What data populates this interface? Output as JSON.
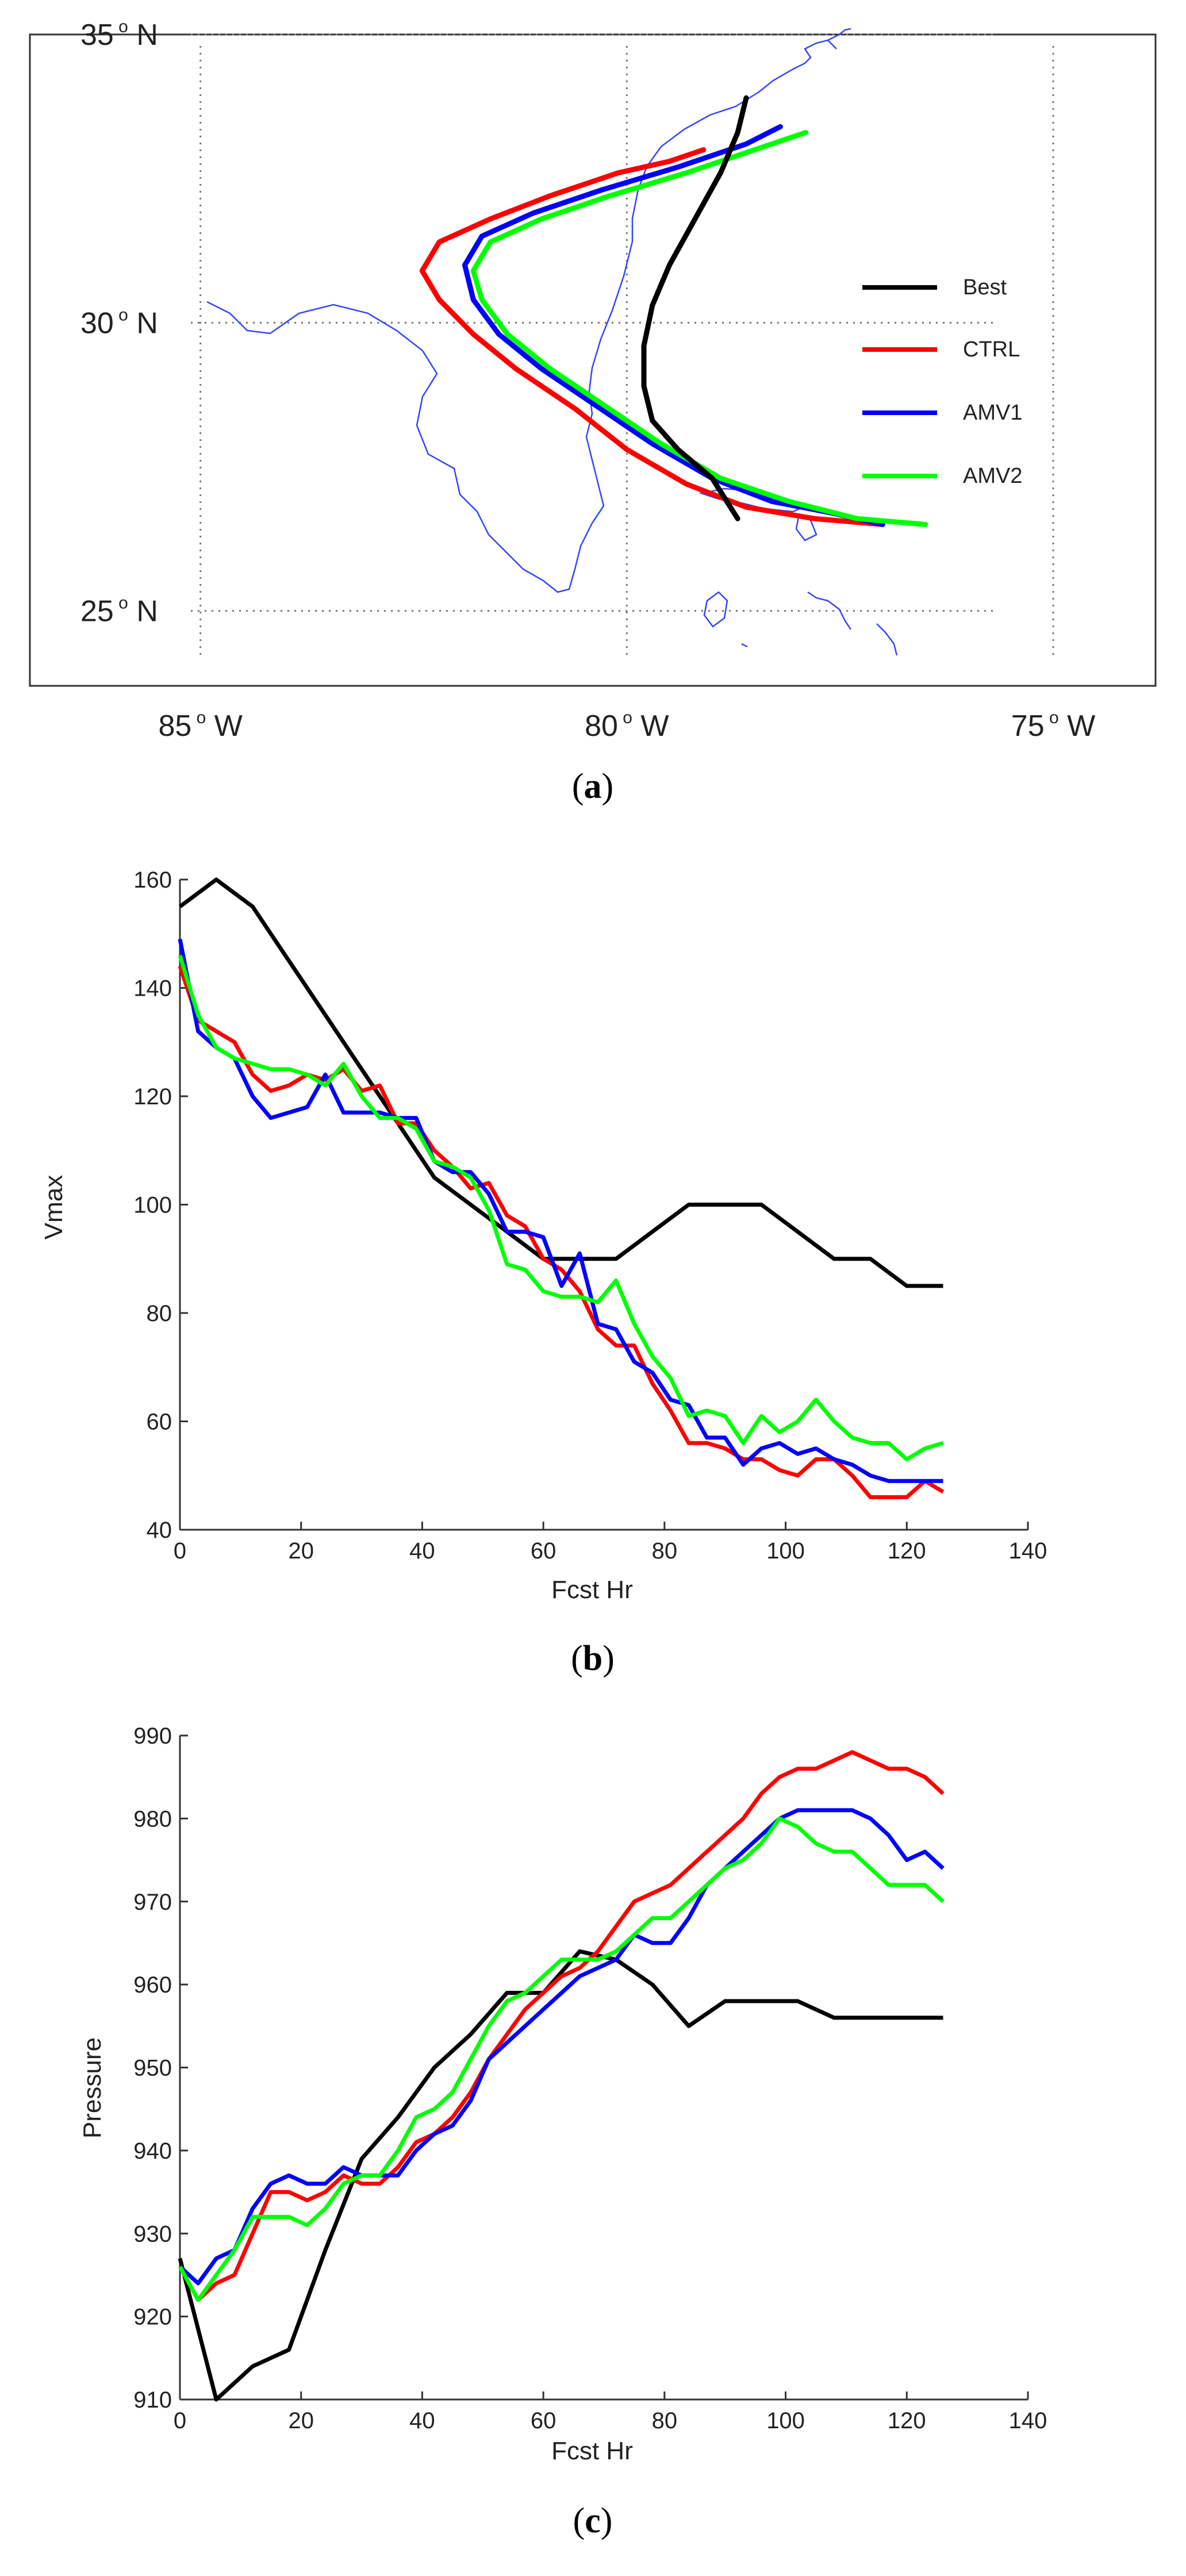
{
  "colors": {
    "best": "#000000",
    "ctrl": "#ff0000",
    "amv1": "#0000ff",
    "amv2": "#00ff00",
    "coast": "#3344ff"
  },
  "chart_data": [
    {
      "type": "line",
      "panel": "a",
      "caption": {
        "open": "(",
        "letter": "a",
        "close": ")"
      },
      "title": "",
      "xlabel": "",
      "ylabel": "",
      "xlim": [
        -87,
        -73.8
      ],
      "ylim": [
        23.7,
        35
      ],
      "x_ticks": [
        -85,
        -80,
        -75
      ],
      "y_ticks": [
        35,
        30,
        25
      ],
      "x_tick_labels": [
        {
          "num": "85",
          "deg": "o",
          "dir": "W"
        },
        {
          "num": "80",
          "deg": "o",
          "dir": "W"
        },
        {
          "num": "75",
          "deg": "o",
          "dir": "W"
        }
      ],
      "y_tick_labels": [
        {
          "num": "35",
          "deg": "o",
          "dir": "N"
        },
        {
          "num": "30",
          "deg": "o",
          "dir": "N"
        },
        {
          "num": "25",
          "deg": "o",
          "dir": "N"
        }
      ],
      "grid": true,
      "legend": "right",
      "series": [
        {
          "name": "Best",
          "key": "best",
          "lon": [
            -78.7,
            -79.0,
            -79.4,
            -79.7,
            -79.8,
            -79.8,
            -79.7,
            -79.5,
            -79.2,
            -78.9,
            -78.7,
            -78.6
          ],
          "lat": [
            26.6,
            27.3,
            27.8,
            28.3,
            28.9,
            29.6,
            30.3,
            31.0,
            31.8,
            32.6,
            33.3,
            33.9
          ]
        },
        {
          "name": "CTRL",
          "key": "ctrl",
          "lon": [
            -77.0,
            -77.8,
            -78.6,
            -79.3,
            -80.0,
            -80.6,
            -81.3,
            -81.8,
            -82.2,
            -82.4,
            -82.2,
            -81.6,
            -80.9,
            -80.1,
            -79.5,
            -79.1
          ],
          "lat": [
            26.5,
            26.6,
            26.8,
            27.2,
            27.8,
            28.5,
            29.2,
            29.8,
            30.4,
            30.9,
            31.4,
            31.8,
            32.2,
            32.6,
            32.8,
            33.0
          ]
        },
        {
          "name": "AMV1",
          "key": "amv1",
          "lon": [
            -77.0,
            -77.6,
            -78.3,
            -79.0,
            -79.7,
            -80.4,
            -81.0,
            -81.5,
            -81.8,
            -81.9,
            -81.7,
            -81.1,
            -80.3,
            -79.4,
            -78.6,
            -78.2
          ],
          "lat": [
            26.5,
            26.7,
            26.9,
            27.3,
            27.9,
            28.6,
            29.2,
            29.8,
            30.4,
            31.0,
            31.5,
            31.9,
            32.3,
            32.7,
            33.1,
            33.4
          ]
        },
        {
          "name": "AMV2",
          "key": "amv2",
          "lon": [
            -76.5,
            -77.3,
            -78.1,
            -78.9,
            -79.6,
            -80.3,
            -80.9,
            -81.4,
            -81.7,
            -81.8,
            -81.6,
            -81.0,
            -80.2,
            -79.3,
            -78.5,
            -77.9
          ],
          "lat": [
            26.5,
            26.6,
            26.9,
            27.3,
            27.9,
            28.6,
            29.2,
            29.8,
            30.4,
            30.9,
            31.4,
            31.8,
            32.2,
            32.6,
            33.0,
            33.3
          ]
        }
      ]
    },
    {
      "type": "line",
      "panel": "b",
      "caption": {
        "open": "(",
        "letter": "b",
        "close": ")"
      },
      "title": "",
      "xlabel": "Fcst Hr",
      "ylabel": "Vmax",
      "xlim": [
        0,
        140
      ],
      "ylim": [
        40,
        160
      ],
      "x_ticks": [
        0,
        20,
        40,
        60,
        80,
        100,
        120,
        140
      ],
      "y_ticks": [
        40,
        60,
        80,
        100,
        120,
        140,
        160
      ],
      "grid": false,
      "legend": "none",
      "series": [
        {
          "name": "Best",
          "key": "best",
          "x": [
            0,
            6,
            12,
            18,
            24,
            30,
            36,
            42,
            48,
            54,
            60,
            66,
            72,
            78,
            84,
            90,
            96,
            102,
            108,
            114,
            120,
            126
          ],
          "y": [
            155,
            160,
            155,
            145,
            135,
            125,
            115,
            105,
            100,
            95,
            90,
            90,
            90,
            95,
            100,
            100,
            100,
            95,
            90,
            90,
            85,
            85
          ]
        },
        {
          "name": "CTRL",
          "key": "ctrl",
          "x": [
            0,
            3,
            6,
            9,
            12,
            15,
            18,
            21,
            24,
            27,
            30,
            33,
            36,
            39,
            42,
            45,
            48,
            51,
            54,
            57,
            60,
            63,
            66,
            69,
            72,
            75,
            78,
            81,
            84,
            87,
            90,
            93,
            96,
            99,
            102,
            105,
            108,
            111,
            114,
            117,
            120,
            123,
            126
          ],
          "y": [
            144,
            134,
            132,
            130,
            124,
            121,
            122,
            124,
            123,
            125,
            121,
            122,
            115,
            115,
            110,
            107,
            103,
            104,
            98,
            96,
            90,
            88,
            84,
            77,
            74,
            74,
            67,
            62,
            56,
            56,
            55,
            53,
            53,
            51,
            50,
            53,
            53,
            50,
            46,
            46,
            46,
            49,
            47
          ]
        },
        {
          "name": "AMV1",
          "key": "amv1",
          "x": [
            0,
            3,
            6,
            9,
            12,
            15,
            18,
            21,
            24,
            27,
            30,
            33,
            36,
            39,
            42,
            45,
            48,
            51,
            54,
            57,
            60,
            63,
            66,
            69,
            72,
            75,
            78,
            81,
            84,
            87,
            90,
            93,
            96,
            99,
            102,
            105,
            108,
            111,
            114,
            117,
            120,
            123,
            126
          ],
          "y": [
            149,
            132,
            129,
            127,
            120,
            116,
            117,
            118,
            124,
            117,
            117,
            117,
            116,
            116,
            108,
            106,
            106,
            102,
            95,
            95,
            94,
            85,
            91,
            78,
            77,
            71,
            69,
            64,
            63,
            57,
            57,
            52,
            55,
            56,
            54,
            55,
            53,
            52,
            50,
            49,
            49,
            49,
            49
          ]
        },
        {
          "name": "AMV2",
          "key": "amv2",
          "x": [
            0,
            3,
            6,
            9,
            12,
            15,
            18,
            21,
            24,
            27,
            30,
            33,
            36,
            39,
            42,
            45,
            48,
            51,
            54,
            57,
            60,
            63,
            66,
            69,
            72,
            75,
            78,
            81,
            84,
            87,
            90,
            93,
            96,
            99,
            102,
            105,
            108,
            111,
            114,
            117,
            120,
            123,
            126
          ],
          "y": [
            146,
            135,
            129,
            127,
            126,
            125,
            125,
            124,
            122,
            126,
            120,
            116,
            116,
            114,
            108,
            107,
            105,
            99,
            89,
            88,
            84,
            83,
            83,
            82,
            86,
            78,
            72,
            68,
            61,
            62,
            61,
            56,
            61,
            58,
            60,
            64,
            60,
            57,
            56,
            56,
            53,
            55,
            56
          ]
        }
      ]
    },
    {
      "type": "line",
      "panel": "c",
      "caption": {
        "open": "(",
        "letter": "c",
        "close": ")"
      },
      "title": "",
      "xlabel": "Fcst Hr",
      "ylabel": "Pressure",
      "xlim": [
        0,
        140
      ],
      "ylim": [
        910,
        990
      ],
      "x_ticks": [
        0,
        20,
        40,
        60,
        80,
        100,
        120,
        140
      ],
      "y_ticks": [
        910,
        920,
        930,
        940,
        950,
        960,
        970,
        980,
        990
      ],
      "grid": false,
      "legend": "none",
      "series": [
        {
          "name": "Best",
          "key": "best",
          "x": [
            0,
            6,
            12,
            18,
            24,
            30,
            36,
            42,
            48,
            54,
            60,
            66,
            72,
            78,
            84,
            90,
            96,
            102,
            108,
            114,
            120,
            126
          ],
          "y": [
            927,
            910,
            914,
            916,
            928,
            939,
            944,
            950,
            954,
            959,
            959,
            964,
            963,
            960,
            955,
            958,
            958,
            958,
            956,
            956,
            956,
            956
          ]
        },
        {
          "name": "CTRL",
          "key": "ctrl",
          "x": [
            0,
            3,
            6,
            9,
            12,
            15,
            18,
            21,
            24,
            27,
            30,
            33,
            36,
            39,
            42,
            45,
            48,
            51,
            54,
            57,
            60,
            63,
            66,
            69,
            72,
            75,
            78,
            81,
            84,
            87,
            90,
            93,
            96,
            99,
            102,
            105,
            108,
            111,
            114,
            117,
            120,
            123,
            126
          ],
          "y": [
            926,
            922,
            924,
            925,
            930,
            935,
            935,
            934,
            935,
            937,
            936,
            936,
            938,
            941,
            942,
            944,
            947,
            951,
            954,
            957,
            959,
            961,
            962,
            964,
            967,
            970,
            971,
            972,
            974,
            976,
            978,
            980,
            983,
            985,
            986,
            986,
            987,
            988,
            987,
            986,
            986,
            985,
            983
          ]
        },
        {
          "name": "AMV1",
          "key": "amv1",
          "x": [
            0,
            3,
            6,
            9,
            12,
            15,
            18,
            21,
            24,
            27,
            30,
            33,
            36,
            39,
            42,
            45,
            48,
            51,
            54,
            57,
            60,
            63,
            66,
            69,
            72,
            75,
            78,
            81,
            84,
            87,
            90,
            93,
            96,
            99,
            102,
            105,
            108,
            111,
            114,
            117,
            120,
            123,
            126
          ],
          "y": [
            926,
            924,
            927,
            928,
            933,
            936,
            937,
            936,
            936,
            938,
            937,
            937,
            937,
            940,
            942,
            943,
            946,
            951,
            953,
            955,
            957,
            959,
            961,
            962,
            963,
            966,
            965,
            965,
            968,
            972,
            974,
            976,
            978,
            980,
            981,
            981,
            981,
            981,
            980,
            978,
            975,
            976,
            974
          ]
        },
        {
          "name": "AMV2",
          "key": "amv2",
          "x": [
            0,
            3,
            6,
            9,
            12,
            15,
            18,
            21,
            24,
            27,
            30,
            33,
            36,
            39,
            42,
            45,
            48,
            51,
            54,
            57,
            60,
            63,
            66,
            69,
            72,
            75,
            78,
            81,
            84,
            87,
            90,
            93,
            96,
            99,
            102,
            105,
            108,
            111,
            114,
            117,
            120,
            123,
            126
          ],
          "y": [
            926,
            922,
            925,
            928,
            932,
            932,
            932,
            931,
            933,
            936,
            937,
            937,
            940,
            944,
            945,
            947,
            951,
            955,
            958,
            959,
            961,
            963,
            963,
            963,
            964,
            966,
            968,
            968,
            970,
            972,
            974,
            975,
            977,
            980,
            979,
            977,
            976,
            976,
            974,
            972,
            972,
            972,
            970
          ]
        }
      ]
    }
  ]
}
